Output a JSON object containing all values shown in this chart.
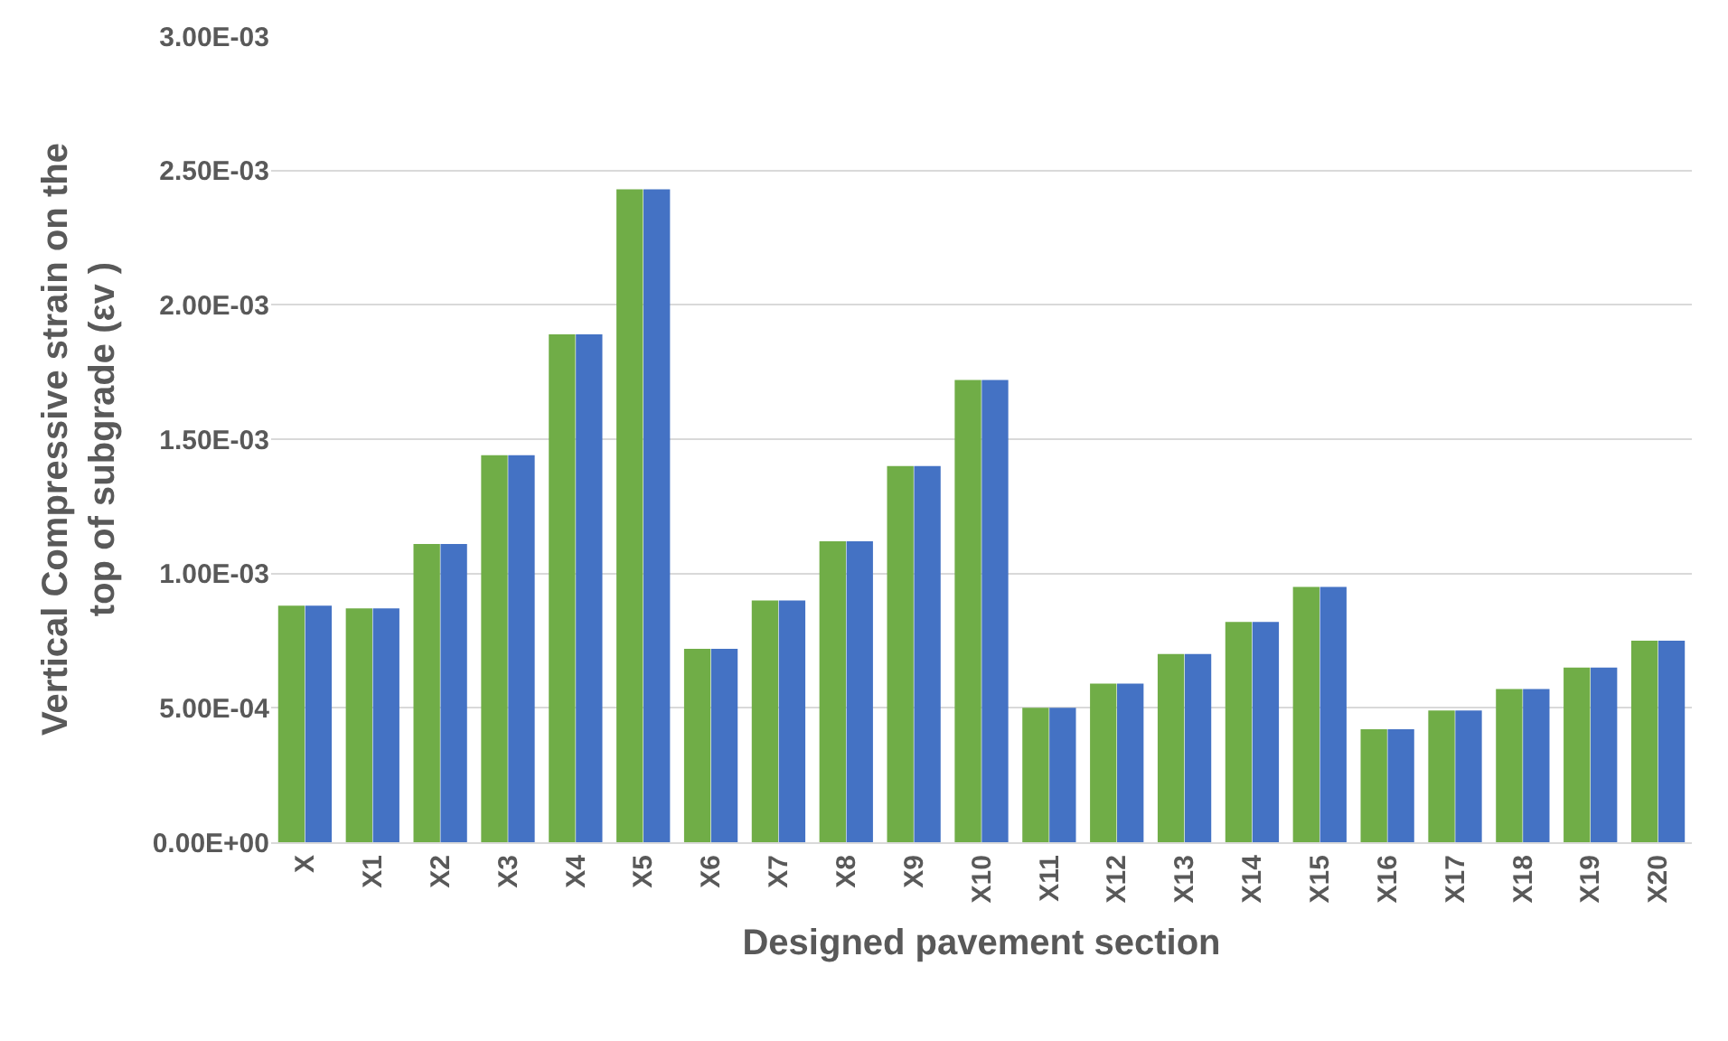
{
  "chart_data": {
    "type": "bar",
    "xlabel": "Designed pavement section",
    "ylabel": "Vertical Compressive strain on the top of subgrade (εv )",
    "categories": [
      "X",
      "X1",
      "X2",
      "X3",
      "X4",
      "X5",
      "X6",
      "X7",
      "X8",
      "X9",
      "X10",
      "X11",
      "X12",
      "X13",
      "X14",
      "X15",
      "X16",
      "X17",
      "X18",
      "X19",
      "X20"
    ],
    "series": [
      {
        "color": "#70ad47",
        "values": [
          0.00088,
          0.00087,
          0.00111,
          0.00144,
          0.00189,
          0.00243,
          0.00072,
          0.0009,
          0.00112,
          0.0014,
          0.00172,
          0.0005,
          0.00059,
          0.0007,
          0.00082,
          0.00095,
          0.00042,
          0.00049,
          0.00057,
          0.00065,
          0.00075
        ]
      },
      {
        "color": "#4472c4",
        "values": [
          0.00088,
          0.00087,
          0.00111,
          0.00144,
          0.00189,
          0.00243,
          0.00072,
          0.0009,
          0.00112,
          0.0014,
          0.00172,
          0.0005,
          0.00059,
          0.0007,
          0.00082,
          0.00095,
          0.00042,
          0.00049,
          0.00057,
          0.00065,
          0.00075
        ]
      }
    ],
    "ylim": [
      0,
      0.003
    ],
    "yticks": [
      {
        "value": 0,
        "label": "0.00E+00"
      },
      {
        "value": 0.0005,
        "label": "5.00E-04"
      },
      {
        "value": 0.001,
        "label": "1.00E-03"
      },
      {
        "value": 0.0015,
        "label": "1.50E-03"
      },
      {
        "value": 0.002,
        "label": "2.00E-03"
      },
      {
        "value": 0.0025,
        "label": "2.50E-03"
      },
      {
        "value": 0.003,
        "label": "3.00E-03"
      }
    ],
    "grid": "y"
  }
}
